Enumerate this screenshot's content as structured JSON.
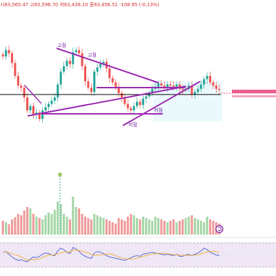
{
  "header": {
    "open_label": "시",
    "open": "83,565.47",
    "high_label": "고",
    "high": "83,596.70",
    "low_label": "저",
    "low": "83,439.10",
    "close_label": "종",
    "close": "83,456.51",
    "change": "-108.95 (-0.13%)"
  },
  "annotations": {
    "high1": "고점",
    "high2": "고점",
    "low1": "저점",
    "low2": "저점"
  },
  "colors": {
    "up": "#26a69a",
    "down": "#ef5350",
    "trendline": "#9c27b0",
    "support": "#000000",
    "rsi": "#5b6ad0",
    "rsi_ma": "#f0b040",
    "current_price": "#ec407a"
  },
  "chart_data": {
    "type": "candlestick",
    "panes": [
      "price",
      "volume",
      "rsi"
    ],
    "price_close": [
      83560,
      83620,
      83590,
      83500,
      83380,
      83290,
      83270,
      83180,
      83060,
      83100,
      83020,
      83040,
      82980,
      83060,
      83090,
      83120,
      83150,
      83180,
      83300,
      83420,
      83470,
      83520,
      83490,
      83600,
      83620,
      83590,
      83470,
      83330,
      83270,
      83230,
      83420,
      83460,
      83490,
      83510,
      83450,
      83360,
      83320,
      83280,
      83220,
      83180,
      83120,
      83080,
      83060,
      83100,
      83140,
      83110,
      83170,
      83190,
      83220,
      83260,
      83280,
      83310,
      83290,
      83270,
      83300,
      83290,
      83270,
      83300,
      83260,
      83250,
      83260,
      83290,
      83210,
      83230,
      83260,
      83300,
      83350,
      83380,
      83320,
      83290,
      83260,
      83250
    ],
    "volume": [
      20,
      18,
      15,
      22,
      25,
      30,
      28,
      35,
      40,
      38,
      30,
      26,
      24,
      22,
      28,
      32,
      30,
      36,
      48,
      44,
      30,
      26,
      22,
      55,
      40,
      38,
      30,
      26,
      24,
      22,
      30,
      28,
      26,
      24,
      22,
      20,
      18,
      16,
      24,
      22,
      20,
      26,
      30,
      28,
      24,
      22,
      26,
      24,
      22,
      20,
      26,
      24,
      22,
      20,
      18,
      20,
      22,
      18,
      20,
      22,
      24,
      26,
      28,
      24,
      22,
      20,
      18,
      26,
      22,
      20,
      18,
      16
    ],
    "rsi": [
      58,
      60,
      52,
      44,
      38,
      34,
      36,
      32,
      30,
      38,
      44,
      42,
      46,
      52,
      56,
      54,
      50,
      48,
      62,
      70,
      66,
      58,
      54,
      72,
      68,
      60,
      52,
      46,
      42,
      40,
      56,
      60,
      58,
      54,
      48,
      44,
      42,
      40,
      38,
      36,
      34,
      38,
      42,
      46,
      48,
      46,
      52,
      54,
      56,
      58,
      56,
      54,
      52,
      50,
      52,
      50,
      48,
      52,
      46,
      46,
      50,
      52,
      48,
      52,
      56,
      62,
      70,
      66,
      58,
      54,
      50,
      48
    ],
    "rsi_levels": [
      70,
      30
    ],
    "rsi_ylim": [
      0,
      100
    ],
    "support_line": 83300,
    "current_price": 83456.51
  }
}
